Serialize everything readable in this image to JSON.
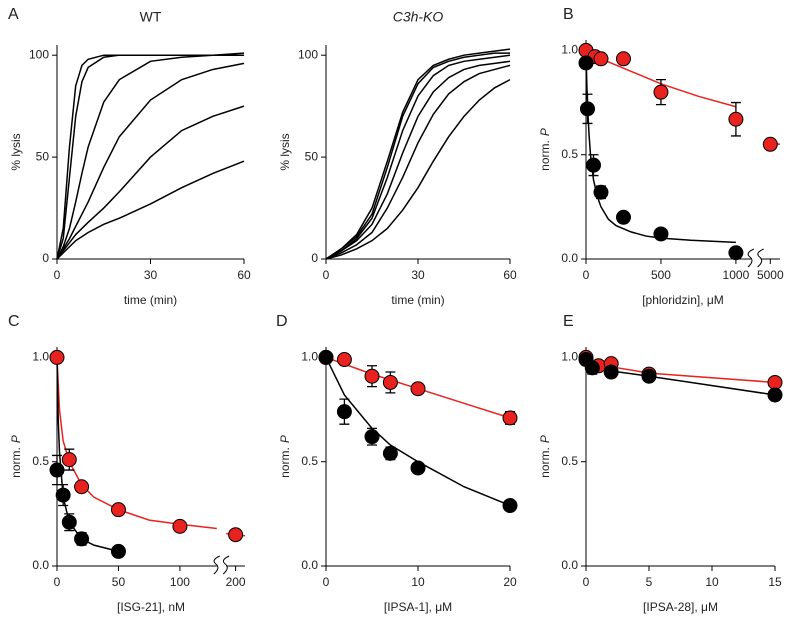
{
  "chart_data": [
    {
      "type": "line",
      "label": "A",
      "title": "WT",
      "title_italic": false,
      "xlabel": "time (min)",
      "ylabel": "% lysis",
      "xlim": [
        0,
        60
      ],
      "ylim": [
        0,
        105
      ],
      "xticks": [
        0,
        30,
        60
      ],
      "yticks": [
        0,
        50,
        100
      ],
      "x": [
        0,
        2,
        4,
        6,
        8,
        10,
        15,
        20,
        30,
        40,
        50,
        60
      ],
      "series": [
        {
          "color": "#000000",
          "values": [
            0,
            15,
            55,
            85,
            95,
            98,
            100,
            100,
            100,
            100,
            100,
            100
          ]
        },
        {
          "color": "#000000",
          "values": [
            0,
            10,
            40,
            70,
            87,
            94,
            99,
            100,
            100,
            100,
            100,
            101
          ]
        },
        {
          "color": "#000000",
          "values": [
            0,
            6,
            15,
            28,
            42,
            55,
            77,
            88,
            97,
            99,
            100,
            100
          ]
        },
        {
          "color": "#000000",
          "values": [
            0,
            5,
            10,
            16,
            22,
            28,
            45,
            60,
            78,
            88,
            93,
            96
          ]
        },
        {
          "color": "#000000",
          "values": [
            0,
            4,
            8,
            12,
            15,
            18,
            25,
            33,
            50,
            63,
            70,
            75
          ]
        },
        {
          "color": "#000000",
          "values": [
            0,
            3,
            6,
            9,
            11,
            13,
            17,
            20,
            27,
            35,
            42,
            48
          ]
        }
      ]
    },
    {
      "type": "line",
      "title": "C3h-KO",
      "title_italic": true,
      "xlabel": "time (min)",
      "ylabel": "% lysis",
      "xlim": [
        0,
        60
      ],
      "ylim": [
        0,
        105
      ],
      "xticks": [
        0,
        30,
        60
      ],
      "yticks": [
        0,
        50,
        100
      ],
      "x": [
        0,
        5,
        10,
        15,
        20,
        25,
        30,
        35,
        40,
        45,
        50,
        55,
        60
      ],
      "series": [
        {
          "color": "#000000",
          "values": [
            0,
            5,
            12,
            25,
            48,
            72,
            88,
            95,
            98,
            100,
            101,
            102,
            103
          ]
        },
        {
          "color": "#000000",
          "values": [
            0,
            5,
            11,
            22,
            45,
            70,
            86,
            94,
            97,
            99,
            100,
            101,
            101
          ]
        },
        {
          "color": "#000000",
          "values": [
            0,
            4,
            10,
            20,
            40,
            63,
            80,
            90,
            95,
            97,
            98,
            99,
            100
          ]
        },
        {
          "color": "#000000",
          "values": [
            0,
            4,
            9,
            17,
            32,
            52,
            70,
            82,
            89,
            93,
            95,
            96,
            97
          ]
        },
        {
          "color": "#000000",
          "values": [
            0,
            3,
            7,
            13,
            25,
            40,
            57,
            71,
            81,
            87,
            91,
            93,
            95
          ]
        },
        {
          "color": "#000000",
          "values": [
            0,
            2,
            5,
            9,
            15,
            24,
            35,
            48,
            60,
            70,
            78,
            84,
            88
          ]
        }
      ]
    },
    {
      "type": "scatter",
      "label": "B",
      "xlabel": "[phloridzin], μM",
      "ylabel": "norm.",
      "ylabel_italic": "P",
      "xlim": [
        0,
        5200
      ],
      "xbreak": [
        1100,
        4800
      ],
      "ylim": [
        0,
        1.05
      ],
      "xticks": [
        0,
        500,
        1000,
        5000
      ],
      "yticks": [
        {
          "value": 0,
          "label": "0.0"
        },
        {
          "value": 0.5,
          "label": "0.5"
        },
        {
          "value": 1,
          "label": "1.0"
        }
      ],
      "fits": [
        {
          "color": "#000000",
          "x": [
            0,
            5,
            10,
            20,
            30,
            50,
            75,
            100,
            150,
            200,
            300,
            400,
            500,
            700,
            1000
          ],
          "values": [
            1,
            0.85,
            0.74,
            0.6,
            0.5,
            0.38,
            0.3,
            0.25,
            0.19,
            0.16,
            0.13,
            0.11,
            0.1,
            0.09,
            0.08
          ]
        },
        {
          "color": "#e8231f",
          "x": [
            0,
            50,
            100,
            200,
            300,
            500,
            750,
            1000
          ],
          "values": [
            1,
            0.98,
            0.96,
            0.93,
            0.9,
            0.84,
            0.78,
            0.73
          ]
        },
        {
          "color": "#e8231f",
          "x": [
            4900,
            5200
          ],
          "values": [
            0.56,
            0.55
          ]
        }
      ],
      "series": [
        {
          "color": "#e8231f",
          "x": [
            0,
            60,
            100,
            250,
            500,
            1000,
            5000
          ],
          "values": [
            1.0,
            0.97,
            0.96,
            0.96,
            0.8,
            0.67,
            0.55
          ],
          "errors": [
            null,
            null,
            null,
            null,
            0.06,
            0.08,
            null
          ]
        },
        {
          "color": "#000000",
          "x": [
            0,
            10,
            50,
            100,
            250,
            500,
            1000
          ],
          "values": [
            0.94,
            0.72,
            0.45,
            0.32,
            0.2,
            0.12,
            0.03
          ],
          "errors": [
            null,
            0.07,
            0.05,
            0.03,
            null,
            null,
            null
          ]
        }
      ]
    },
    {
      "type": "scatter",
      "label": "C",
      "xlabel": "[ISG-21], nM",
      "ylabel": "norm.",
      "ylabel_italic": "P",
      "xlim": [
        0,
        210
      ],
      "xbreak": [
        130,
        190
      ],
      "ylim": [
        0,
        1.05
      ],
      "xticks": [
        0,
        50,
        100,
        200
      ],
      "yticks": [
        {
          "value": 0,
          "label": "0.0"
        },
        {
          "value": 0.5,
          "label": "0.5"
        },
        {
          "value": 1,
          "label": "1.0"
        }
      ],
      "fits": [
        {
          "color": "#e8231f",
          "x": [
            0,
            2,
            5,
            10,
            20,
            30,
            50,
            75,
            100,
            130
          ],
          "values": [
            1,
            0.75,
            0.6,
            0.5,
            0.39,
            0.33,
            0.27,
            0.22,
            0.2,
            0.18
          ]
        },
        {
          "color": "#e8231f",
          "x": [
            190,
            210
          ],
          "values": [
            0.155,
            0.145
          ]
        },
        {
          "color": "#000000",
          "x": [
            0,
            1,
            2,
            5,
            10,
            20,
            30,
            50
          ],
          "values": [
            1,
            0.7,
            0.55,
            0.33,
            0.21,
            0.13,
            0.1,
            0.07
          ]
        }
      ],
      "series": [
        {
          "color": "#e8231f",
          "x": [
            0,
            10,
            20,
            50,
            100,
            200
          ],
          "values": [
            1.0,
            0.51,
            0.38,
            0.27,
            0.19,
            0.15
          ],
          "errors": [
            null,
            0.05,
            null,
            0.02,
            0.02,
            0.02
          ]
        },
        {
          "color": "#000000",
          "x": [
            0,
            5,
            10,
            20,
            50
          ],
          "values": [
            0.46,
            0.34,
            0.21,
            0.13,
            0.07
          ],
          "errors": [
            0.07,
            0.05,
            0.04,
            0.03,
            null
          ]
        }
      ]
    },
    {
      "type": "scatter",
      "label": "D",
      "xlabel": "[IPSA-1], μM",
      "ylabel": "norm.",
      "ylabel_italic": "P",
      "xlim": [
        0,
        20
      ],
      "ylim": [
        0,
        1.05
      ],
      "xticks": [
        0,
        10,
        20
      ],
      "yticks": [
        {
          "value": 0,
          "label": "0.0"
        },
        {
          "value": 0.5,
          "label": "0.5"
        },
        {
          "value": 1,
          "label": "1.0"
        }
      ],
      "fits": [
        {
          "color": "#e8231f",
          "x": [
            0,
            5,
            10,
            15,
            20
          ],
          "values": [
            1,
            0.92,
            0.85,
            0.78,
            0.71
          ]
        },
        {
          "color": "#000000",
          "x": [
            0,
            2,
            5,
            7,
            10,
            15,
            20
          ],
          "values": [
            1,
            0.82,
            0.66,
            0.58,
            0.5,
            0.38,
            0.29
          ]
        }
      ],
      "series": [
        {
          "color": "#e8231f",
          "x": [
            0,
            2,
            5,
            7,
            10,
            20
          ],
          "values": [
            1.0,
            0.99,
            0.91,
            0.88,
            0.85,
            0.71
          ],
          "errors": [
            null,
            null,
            0.05,
            0.05,
            null,
            0.03
          ]
        },
        {
          "color": "#000000",
          "x": [
            0,
            2,
            5,
            7,
            10,
            20
          ],
          "values": [
            1.0,
            0.74,
            0.62,
            0.54,
            0.47,
            0.29
          ],
          "errors": [
            null,
            0.06,
            0.04,
            0.03,
            0.02,
            null
          ]
        }
      ]
    },
    {
      "type": "scatter",
      "label": "E",
      "xlabel": "[IPSA-28], μM",
      "ylabel": "norm.",
      "ylabel_italic": "P",
      "xlim": [
        0,
        15
      ],
      "ylim": [
        0,
        1.05
      ],
      "xticks": [
        0,
        5,
        10,
        15
      ],
      "yticks": [
        {
          "value": 0,
          "label": "0.0"
        },
        {
          "value": 0.5,
          "label": "0.5"
        },
        {
          "value": 1,
          "label": "1.0"
        }
      ],
      "fits": [
        {
          "color": "#e8231f",
          "x": [
            0,
            1,
            2,
            5,
            15
          ],
          "values": [
            1,
            0.965,
            0.955,
            0.925,
            0.88
          ]
        },
        {
          "color": "#000000",
          "x": [
            0,
            0.5,
            2,
            5,
            15
          ],
          "values": [
            1,
            0.96,
            0.935,
            0.91,
            0.82
          ]
        }
      ],
      "series": [
        {
          "color": "#e8231f",
          "x": [
            0,
            1,
            2,
            5,
            15
          ],
          "values": [
            1.0,
            0.96,
            0.97,
            0.92,
            0.88
          ],
          "errors": [
            null,
            null,
            null,
            null,
            null
          ]
        },
        {
          "color": "#000000",
          "x": [
            0,
            0.5,
            2,
            5,
            15
          ],
          "values": [
            0.99,
            0.95,
            0.93,
            0.91,
            0.82
          ],
          "errors": [
            null,
            0.03,
            0.02,
            null,
            null
          ]
        }
      ]
    }
  ]
}
